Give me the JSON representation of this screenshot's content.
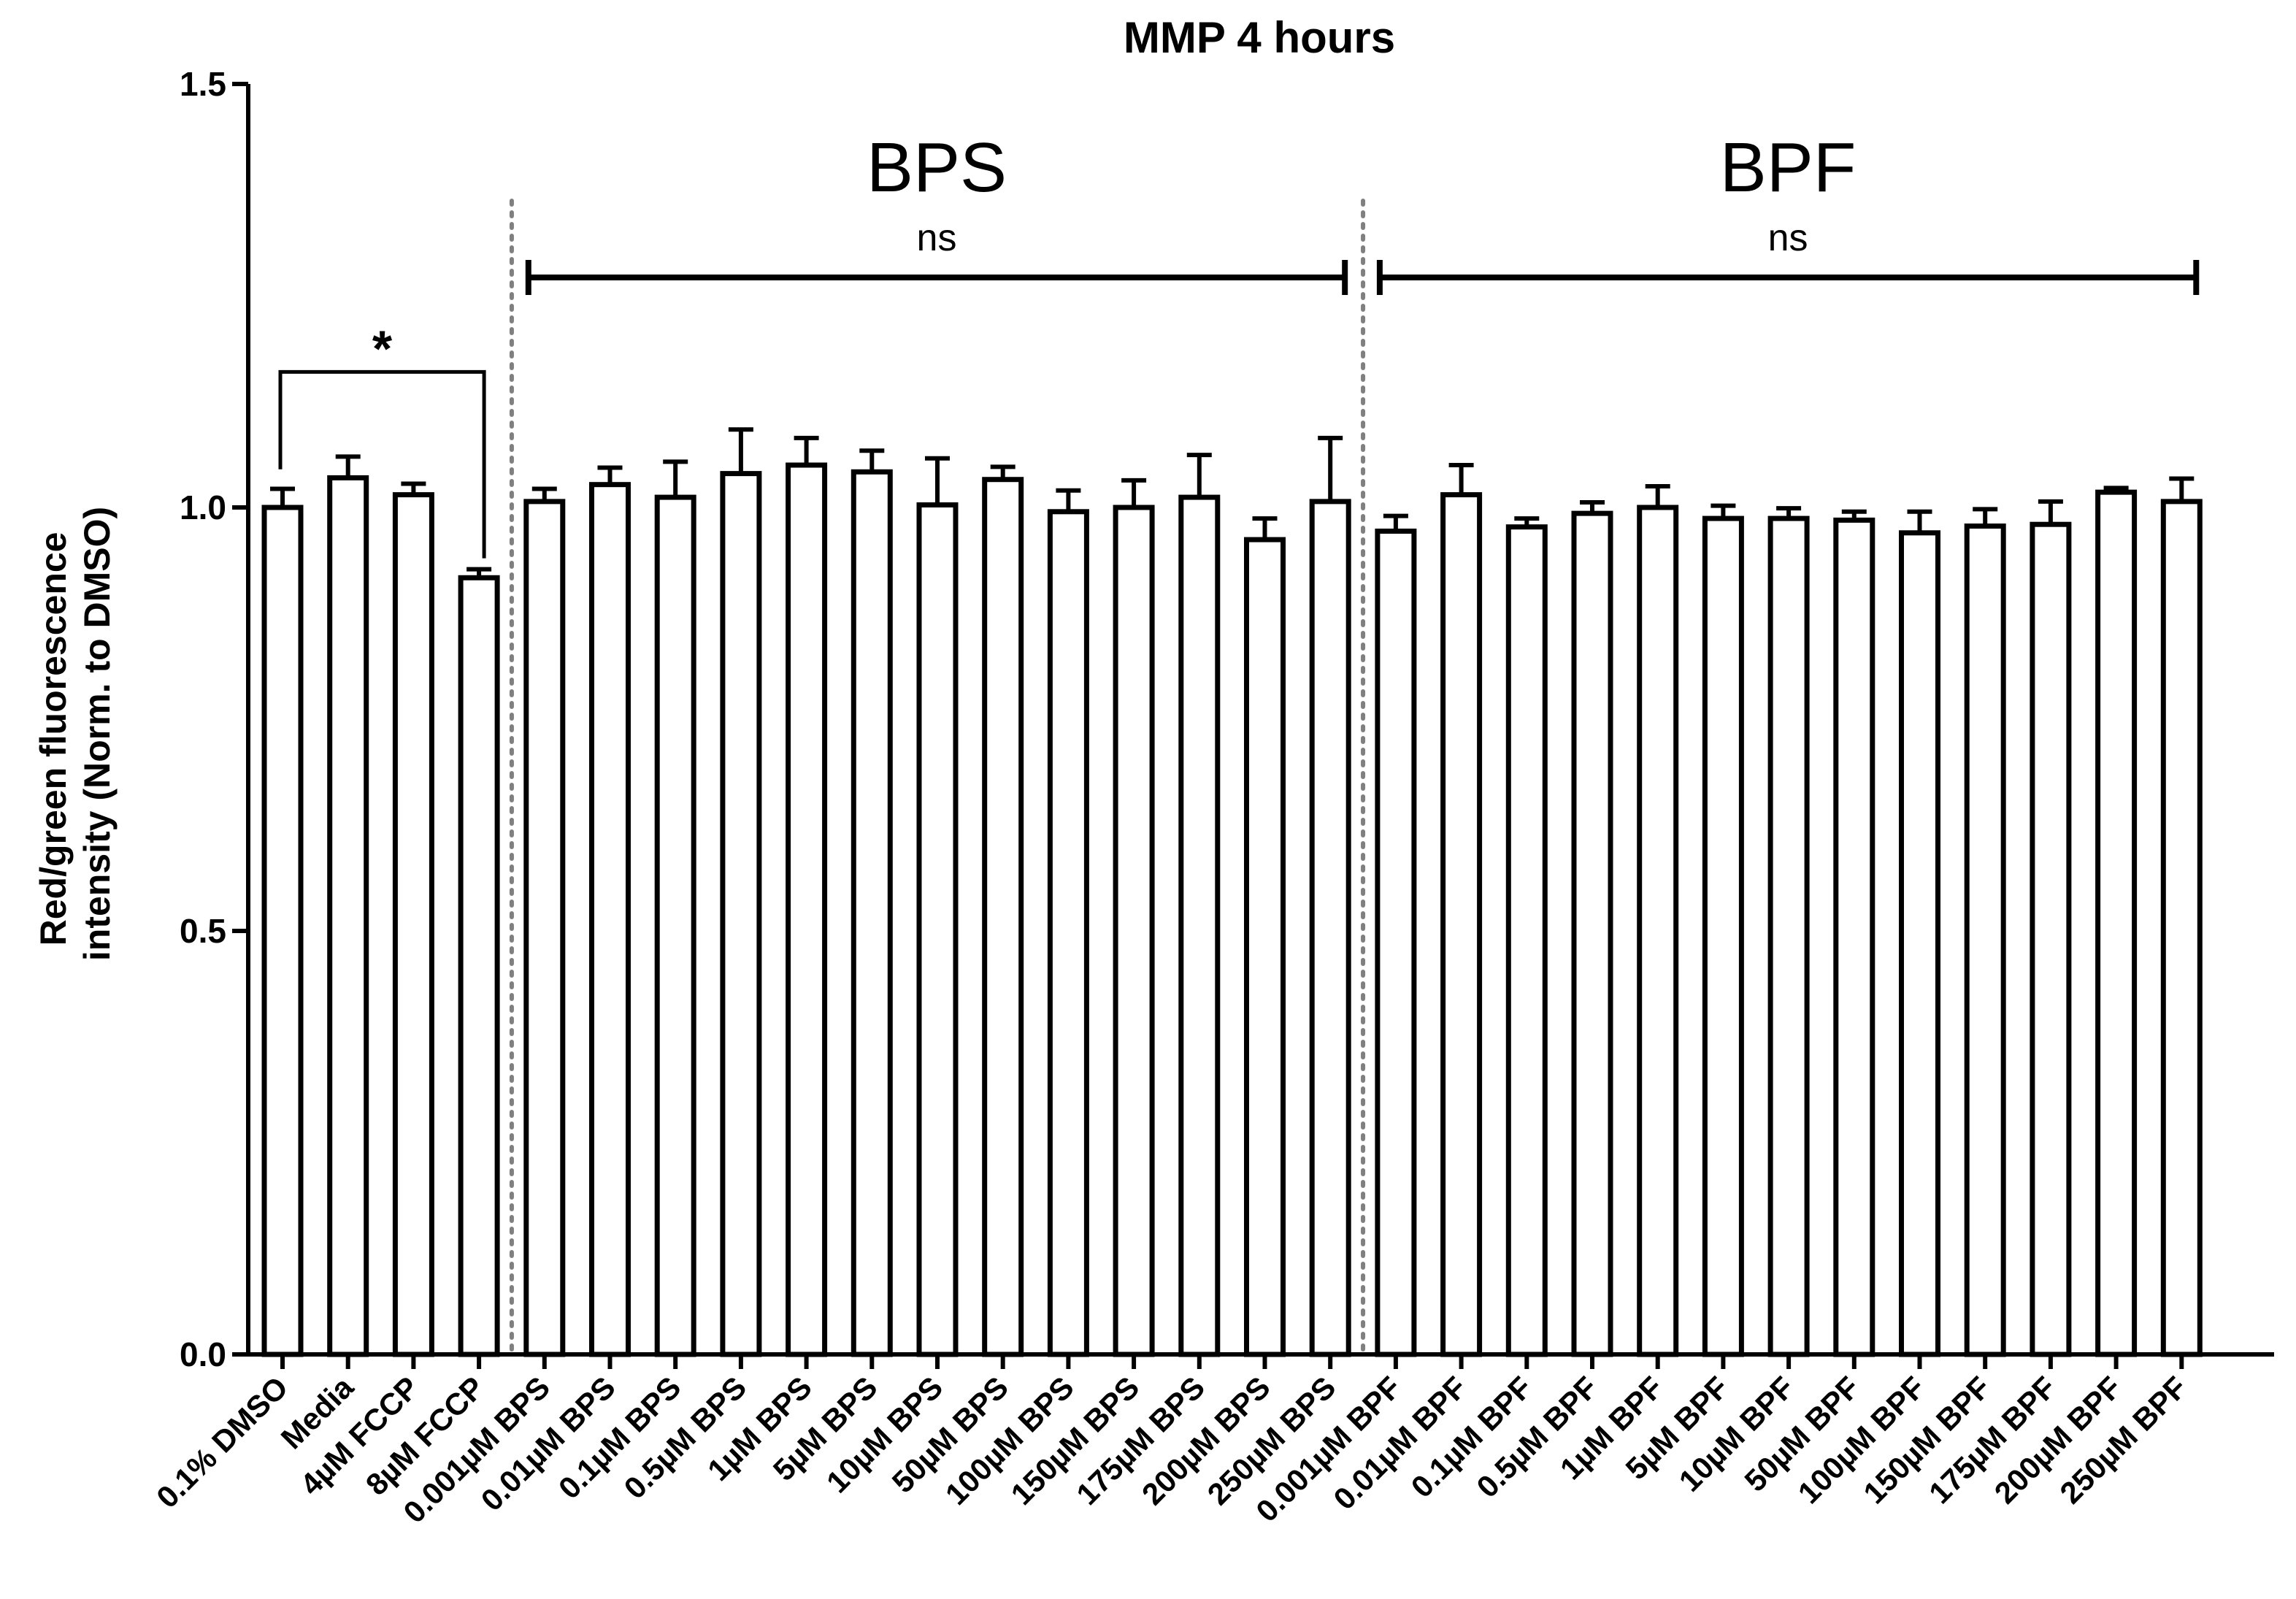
{
  "chart_data": {
    "type": "bar",
    "title": "MMP 4 hours",
    "ylabel_lines": [
      "Red/green fluorescence",
      "intensity (Norm. to DMSO)"
    ],
    "xlabel": "",
    "ylim": [
      0,
      1.5
    ],
    "yticks": [
      0.0,
      0.5,
      1.0,
      1.5
    ],
    "ytick_labels": [
      "0.0",
      "0.5",
      "1.0",
      "1.5"
    ],
    "grid": false,
    "bar_fill": "#ffffff",
    "bar_stroke": "#000000",
    "categories": [
      "0.1% DMSO",
      "Media",
      "4µM FCCP",
      "8µM FCCP",
      "0.001µM BPS",
      "0.01µM BPS",
      "0.1µM BPS",
      "0.5µM BPS",
      "1µM BPS",
      "5µM BPS",
      "10µM BPS",
      "50µM BPS",
      "100µM BPS",
      "150µM BPS",
      "175µM BPS",
      "200µM BPS",
      "250µM BPS",
      "0.001µM BPF",
      "0.01µM BPF",
      "0.1µM BPF",
      "0.5µM BPF",
      "1µM BPF",
      "5µM BPF",
      "10µM BPF",
      "50µM BPF",
      "100µM BPF",
      "150µM BPF",
      "175µM BPF",
      "200µM BPF",
      "250µM BPF"
    ],
    "values": [
      1.0,
      1.035,
      1.015,
      0.917,
      1.007,
      1.027,
      1.012,
      1.04,
      1.05,
      1.042,
      1.003,
      1.033,
      0.995,
      1.0,
      1.012,
      0.962,
      1.007,
      0.972,
      1.015,
      0.977,
      0.993,
      1.0,
      0.987,
      0.987,
      0.985,
      0.97,
      0.978,
      0.98,
      1.018,
      1.007
    ],
    "errors": [
      0.022,
      0.025,
      0.013,
      0.01,
      0.015,
      0.02,
      0.042,
      0.052,
      0.032,
      0.025,
      0.055,
      0.015,
      0.025,
      0.032,
      0.05,
      0.025,
      0.075,
      0.018,
      0.035,
      0.01,
      0.013,
      0.025,
      0.015,
      0.012,
      0.01,
      0.025,
      0.02,
      0.027,
      0.005,
      0.027
    ],
    "groups": [
      {
        "label": "BPS",
        "significance": "ns",
        "start_index": 4,
        "end_index": 16
      },
      {
        "label": "BPF",
        "significance": "ns",
        "start_index": 17,
        "end_index": 29
      }
    ],
    "dividers_after_index": [
      3,
      16
    ],
    "comparison": {
      "label": "*",
      "from_index": 0,
      "to_index": 3,
      "y": 1.16
    }
  }
}
